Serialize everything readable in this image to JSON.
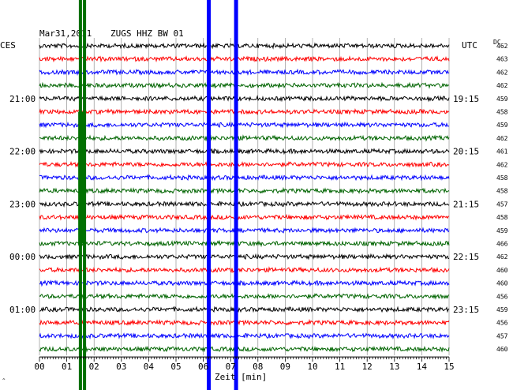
{
  "header": {
    "date": "Mar31,2011",
    "station": "ZUGS HHZ BW 01",
    "left_zone": "CES",
    "right_zone": "UTC",
    "dc_label": "DC"
  },
  "colors": {
    "black": "#000000",
    "red": "#ff0000",
    "blue": "#0000ff",
    "green": "#006400",
    "grid": "#808080",
    "marker_blue": "#0000ff",
    "marker_green": "#007000"
  },
  "chart_data": {
    "type": "line",
    "xlabel": "Zeit [min]",
    "xlim": [
      0,
      15
    ],
    "x_ticks": [
      "00",
      "01",
      "02",
      "03",
      "04",
      "05",
      "06",
      "07",
      "08",
      "09",
      "10",
      "11",
      "12",
      "13",
      "14",
      "15"
    ],
    "trace_colors": [
      "black",
      "red",
      "blue",
      "green"
    ],
    "left_labels": [
      {
        "row": 4,
        "text": "21:00"
      },
      {
        "row": 8,
        "text": "22:00"
      },
      {
        "row": 12,
        "text": "23:00"
      },
      {
        "row": 16,
        "text": "00:00"
      },
      {
        "row": 20,
        "text": "01:00"
      }
    ],
    "right_labels": [
      {
        "row": 4,
        "text": "19:15"
      },
      {
        "row": 8,
        "text": "20:15"
      },
      {
        "row": 12,
        "text": "21:15"
      },
      {
        "row": 16,
        "text": "22:15"
      },
      {
        "row": 20,
        "text": "23:15"
      }
    ],
    "dc_offsets": [
      "462",
      "463",
      "462",
      "462",
      "459",
      "458",
      "459",
      "462",
      "461",
      "462",
      "458",
      "458",
      "457",
      "458",
      "459",
      "466",
      "462",
      "460",
      "460",
      "456",
      "459",
      "456",
      "457",
      "460"
    ],
    "green_event_minutes": [
      1.5,
      1.65
    ],
    "blue_marker_minutes": [
      6.2,
      7.2
    ]
  }
}
